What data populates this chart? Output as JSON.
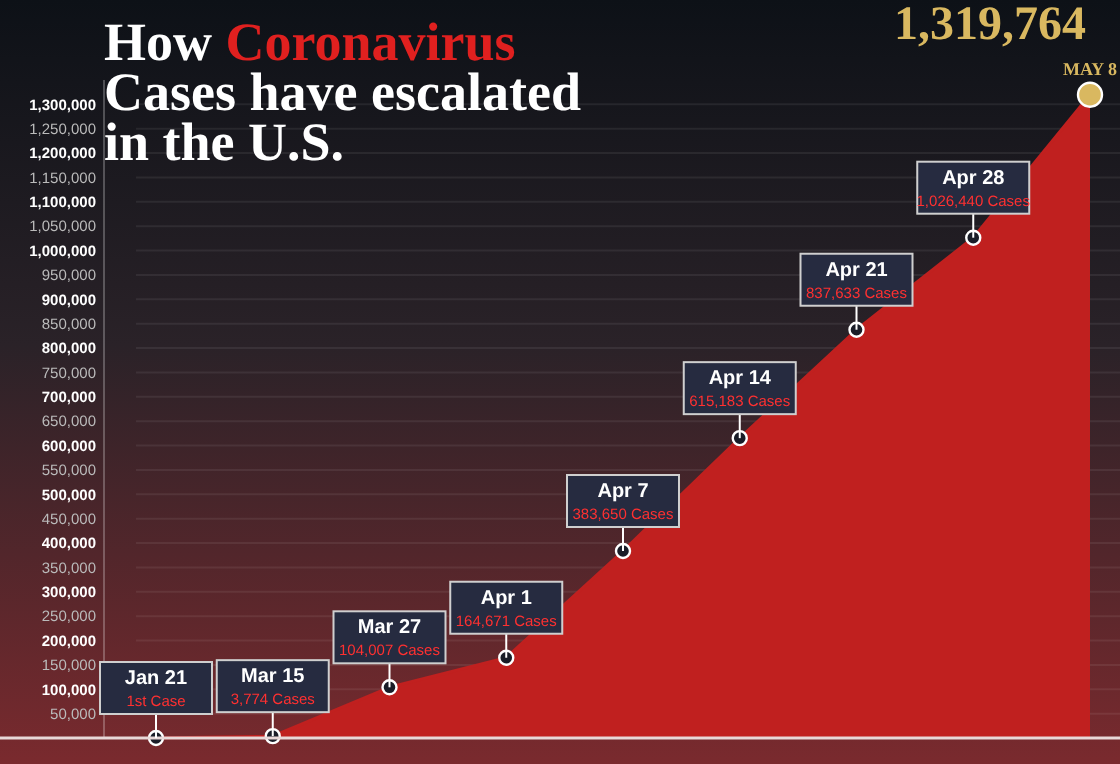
{
  "chart_data": {
    "type": "area",
    "title": "How Coronavirus Cases have escalated in the U.S.",
    "categories": [
      "Jan 21",
      "Mar 15",
      "Mar 27",
      "Apr 1",
      "Apr 7",
      "Apr 14",
      "Apr 21",
      "Apr 28",
      "MAY 8"
    ],
    "values": [
      1,
      3774,
      104007,
      164671,
      383650,
      615183,
      837633,
      1026440,
      1319764
    ],
    "value_labels": [
      "1st Case",
      "3,774 Cases",
      "104,007 Cases",
      "164,671 Cases",
      "383,650 Cases",
      "615,183 Cases",
      "837,633 Cases",
      "1,026,440 Cases",
      "1,319,764"
    ],
    "color": "#c0201f",
    "ylim": [
      0,
      1350000
    ],
    "yticks": [
      {
        "value": 50000,
        "label": "50,000"
      },
      {
        "value": 100000,
        "label": "100,000"
      },
      {
        "value": 150000,
        "label": "150,000"
      },
      {
        "value": 200000,
        "label": "200,000"
      },
      {
        "value": 250000,
        "label": "250,000"
      },
      {
        "value": 300000,
        "label": "300,000"
      },
      {
        "value": 350000,
        "label": "350,000"
      },
      {
        "value": 400000,
        "label": "400,000"
      },
      {
        "value": 450000,
        "label": "450,000"
      },
      {
        "value": 500000,
        "label": "500,000"
      },
      {
        "value": 550000,
        "label": "550,000"
      },
      {
        "value": 600000,
        "label": "600,000"
      },
      {
        "value": 650000,
        "label": "650,000"
      },
      {
        "value": 700000,
        "label": "700,000"
      },
      {
        "value": 750000,
        "label": "750,000"
      },
      {
        "value": 800000,
        "label": "800,000"
      },
      {
        "value": 850000,
        "label": "850,000"
      },
      {
        "value": 900000,
        "label": "900,000"
      },
      {
        "value": 950000,
        "label": "950,000"
      },
      {
        "value": 1000000,
        "label": "1,000,000"
      },
      {
        "value": 1050000,
        "label": "1,050,000"
      },
      {
        "value": 1100000,
        "label": "1,100,000"
      },
      {
        "value": 1150000,
        "label": "1,150,000"
      },
      {
        "value": 1200000,
        "label": "1,200,000"
      },
      {
        "value": 1250000,
        "label": "1,250,000"
      },
      {
        "value": 1300000,
        "label": "1,300,000"
      }
    ],
    "grid": "y",
    "marker": "circle"
  }
}
